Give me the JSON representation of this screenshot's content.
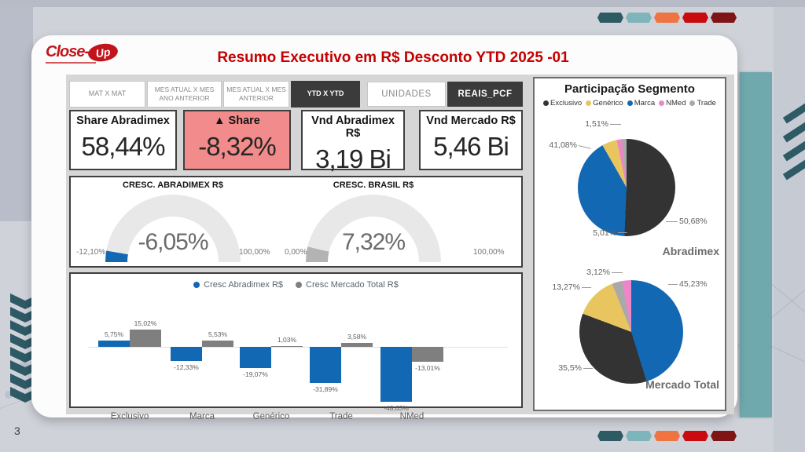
{
  "page_number": "3",
  "logo": {
    "close": "Close-",
    "up": "Up"
  },
  "title": "Resumo Executivo em R$ Desconto YTD 2025 -01",
  "slicers": {
    "tabs": [
      {
        "label": "MAT X MAT",
        "selected": false
      },
      {
        "label": "MES ATUAL X MES ANO ANTERIOR",
        "selected": false
      },
      {
        "label": "MES ATUAL X MES ANTERIOR",
        "selected": false
      },
      {
        "label": "YTD X YTD",
        "selected": true
      },
      {
        "label": "UNIDADES",
        "selected": false
      },
      {
        "label": "REAIS_PCF",
        "selected": true
      }
    ]
  },
  "kpis": [
    {
      "title": "Share Abradimex",
      "value": "58,44%"
    },
    {
      "title": "▲ Share",
      "value": "-8,32%",
      "highlight": true
    },
    {
      "title": "Vnd Abradimex R$",
      "value": "3,19 Bi"
    },
    {
      "title": "Vnd Mercado R$",
      "value": "5,46 Bi"
    }
  ],
  "colors": {
    "blue": "#1268B3",
    "dark": "#333333",
    "yellow": "#E8C55F",
    "pink": "#ED86C8",
    "gray": "#A9A9A9",
    "barGray": "#7F7F7F",
    "gaugeGray": "#B3B3B3",
    "gaugeTrack": "#E8E8E8",
    "kpiAlert": "#F28B8B",
    "titleRed": "#C40000",
    "teal": "#6FA9AD",
    "darkTeal": "#2E5A66",
    "pills": [
      "#2E5B63",
      "#7EB5BB",
      "#EF7442",
      "#C90B0F",
      "#7E1416"
    ]
  },
  "chart_data": {
    "gauges": [
      {
        "type": "gauge",
        "title": "CRESC. ABRADIMEX R$",
        "value": -6.05,
        "min": -12.1,
        "max": 100.0,
        "value_label": "-6,05%",
        "min_label": "-12,10%",
        "max_label": "100,00%",
        "color_key": "blue"
      },
      {
        "type": "gauge",
        "title": "CRESC. BRASIL R$",
        "value": 7.32,
        "min": 0.0,
        "max": 100.0,
        "value_label": "7,32%",
        "min_label": "0,00%",
        "max_label": "100,00%",
        "color_key": "gaugeGray"
      }
    ],
    "bar_chart": {
      "type": "bar",
      "legend": [
        "Cresc Abradimex R$",
        "Cresc Mercado Total R$"
      ],
      "categories": [
        "Exclusivo",
        "Marca",
        "Genérico",
        "Trade",
        "NMed"
      ],
      "series": [
        {
          "name": "Cresc Abradimex R$",
          "color_key": "blue",
          "values": [
            5.75,
            -12.33,
            -19.07,
            -31.89,
            -48.63
          ],
          "labels": [
            "5,75%",
            "-12,33%",
            "-19,07%",
            "-31,89%",
            "-48,63%"
          ]
        },
        {
          "name": "Cresc Mercado Total R$",
          "color_key": "barGray",
          "values": [
            15.02,
            5.53,
            1.03,
            3.58,
            -13.01
          ],
          "labels": [
            "15,02%",
            "5,53%",
            "1,03%",
            "3,58%",
            "-13,01%"
          ]
        }
      ]
    },
    "pies": [
      {
        "type": "pie",
        "name": "Abradimex",
        "title": "Participação Segmento",
        "slices": [
          {
            "segment": "Exclusivo",
            "pct": 50.68,
            "label": "50,68%",
            "color_key": "dark"
          },
          {
            "segment": "Marca",
            "pct": 41.08,
            "label": "41,08%",
            "color_key": "blue"
          },
          {
            "segment": "Genérico",
            "pct": 5.01,
            "label": "5,01%",
            "color_key": "yellow"
          },
          {
            "segment": "NMed",
            "pct": 1.72,
            "color_key": "pink"
          },
          {
            "segment": "Trade",
            "pct": 1.51,
            "label": "1,51%",
            "color_key": "gray"
          }
        ]
      },
      {
        "type": "pie",
        "name": "Mercado Total",
        "slices": [
          {
            "segment": "Marca",
            "pct": 45.23,
            "label": "45,23%",
            "color_key": "blue"
          },
          {
            "segment": "Exclusivo",
            "pct": 35.5,
            "label": "35,5%",
            "color_key": "dark"
          },
          {
            "segment": "Genérico",
            "pct": 13.27,
            "label": "13,27%",
            "color_key": "yellow"
          },
          {
            "segment": "Trade",
            "pct": 3.12,
            "label": "3,12%",
            "color_key": "gray"
          },
          {
            "segment": "NMed",
            "pct": 2.88,
            "color_key": "pink"
          }
        ]
      }
    ],
    "pie_legend": [
      "Exclusivo",
      "Genérico",
      "Marca",
      "NMed",
      "Trade"
    ]
  }
}
